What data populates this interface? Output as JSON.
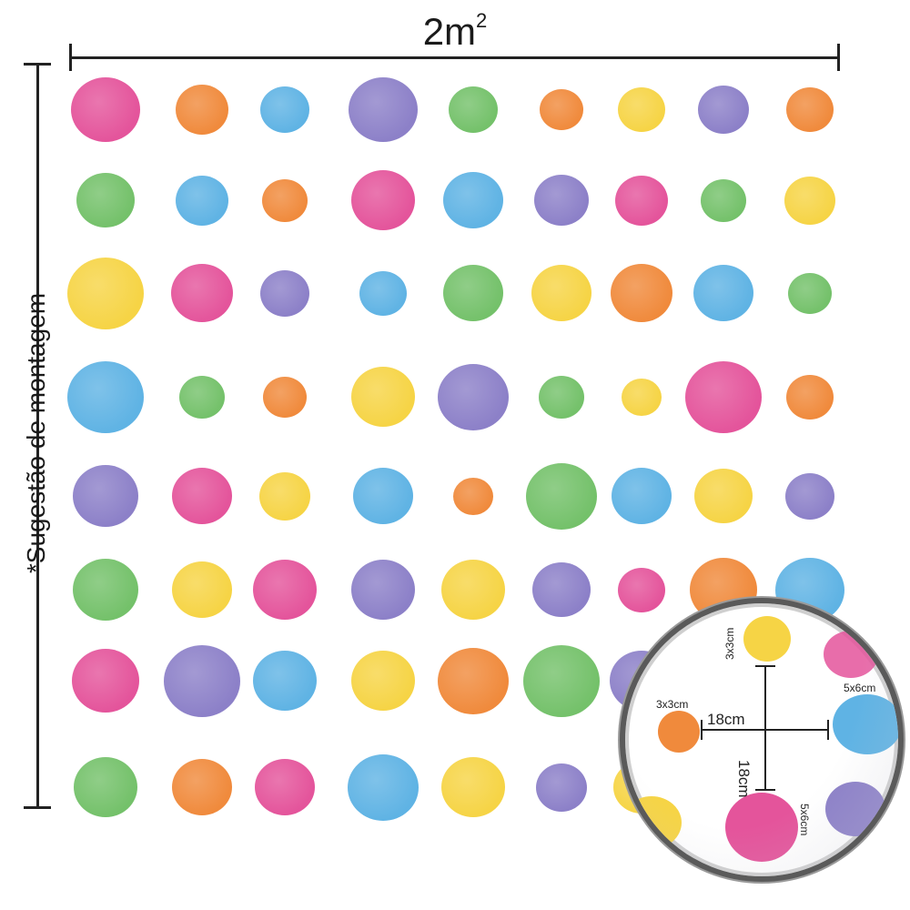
{
  "header": {
    "title_base": "2m",
    "title_exp": "2"
  },
  "side": {
    "label": "*Sugestão de montagem"
  },
  "palette": {
    "pink": "#e4549b",
    "orange": "#f08a3c",
    "blue": "#5fb3e4",
    "purple": "#8c80c8",
    "green": "#74c16a",
    "yellow": "#f6d445"
  },
  "dots": [
    [
      "pink",
      "orange",
      "blue",
      "purple",
      "green",
      "orange",
      "yellow",
      "purple",
      "orange"
    ],
    [
      "green",
      "blue",
      "orange",
      "pink",
      "blue",
      "purple",
      "pink",
      "green",
      "yellow"
    ],
    [
      "yellow",
      "pink",
      "purple",
      "blue",
      "green",
      "yellow",
      "orange",
      "blue",
      "green"
    ],
    [
      "blue",
      "green",
      "orange",
      "yellow",
      "purple",
      "green",
      "yellow",
      "pink",
      "orange"
    ],
    [
      "purple",
      "pink",
      "yellow",
      "blue",
      "orange",
      "green",
      "blue",
      "yellow",
      "purple"
    ],
    [
      "green",
      "yellow",
      "pink",
      "purple",
      "yellow",
      "purple",
      "pink",
      "orange",
      "blue"
    ],
    [
      "pink",
      "purple",
      "blue",
      "yellow",
      "orange",
      "green",
      "purple",
      "",
      ""
    ],
    [
      "green",
      "orange",
      "pink",
      "blue",
      "yellow",
      "purple",
      "yellow",
      "",
      ""
    ]
  ],
  "detail": {
    "small_top": "3x3cm",
    "small_left": "3x3cm",
    "large_right": "5x6cm",
    "large_bottom": "5x6cm",
    "h_gap": "18cm",
    "v_gap": "18cm"
  }
}
